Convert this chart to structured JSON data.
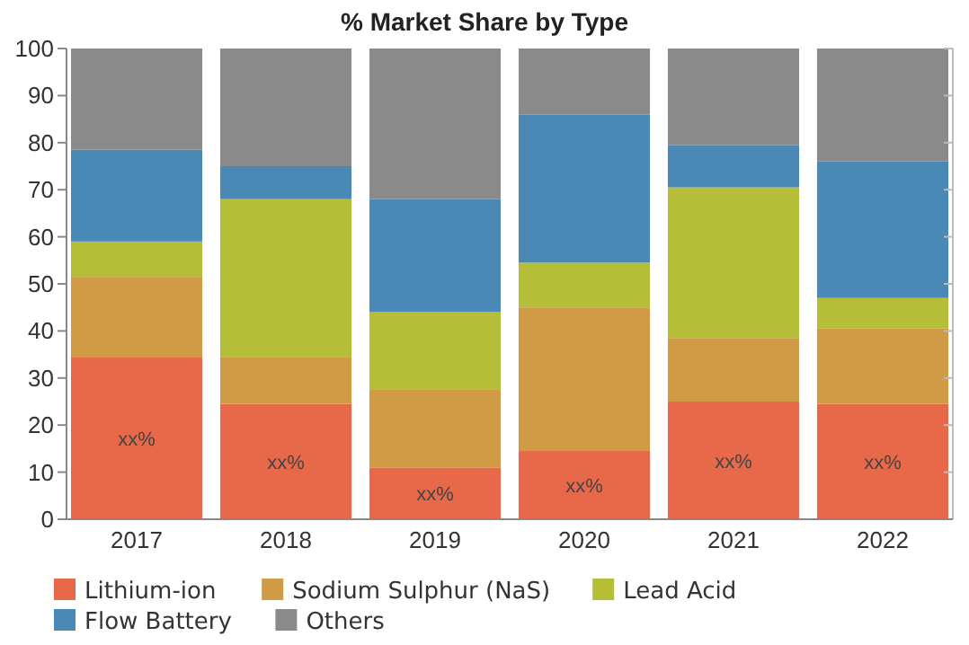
{
  "chart_data": {
    "type": "bar",
    "title": "% Market Share by Type",
    "stacked": true,
    "categories": [
      "2017",
      "2018",
      "2019",
      "2020",
      "2021",
      "2022"
    ],
    "series": [
      {
        "name": "Lithium-ion",
        "color": "#e8684a",
        "values": [
          34.5,
          24.5,
          11,
          14.5,
          25,
          24.5
        ],
        "value_labels": [
          "xx%",
          "xx%",
          "xx%",
          "xx%",
          "xx%",
          "xx%"
        ]
      },
      {
        "name": "Sodium Sulphur (NaS)",
        "color": "#d19b45",
        "values": [
          17,
          10,
          16.5,
          30.5,
          13.5,
          16
        ]
      },
      {
        "name": "Lead Acid",
        "color": "#b5be38",
        "values": [
          7.5,
          33.5,
          16.5,
          9.5,
          32,
          6.5
        ]
      },
      {
        "name": "Flow Battery",
        "color": "#4a89b5",
        "values": [
          19.5,
          7,
          24,
          31.5,
          9,
          29
        ]
      },
      {
        "name": "Others",
        "color": "#8a8a8a",
        "values": [
          21.5,
          25,
          32,
          14,
          20.5,
          24
        ]
      }
    ],
    "ylim": [
      0,
      100
    ],
    "yticks": [
      0,
      10,
      20,
      30,
      40,
      50,
      60,
      70,
      80,
      90,
      100
    ],
    "grid": false,
    "legend": "bottom"
  }
}
